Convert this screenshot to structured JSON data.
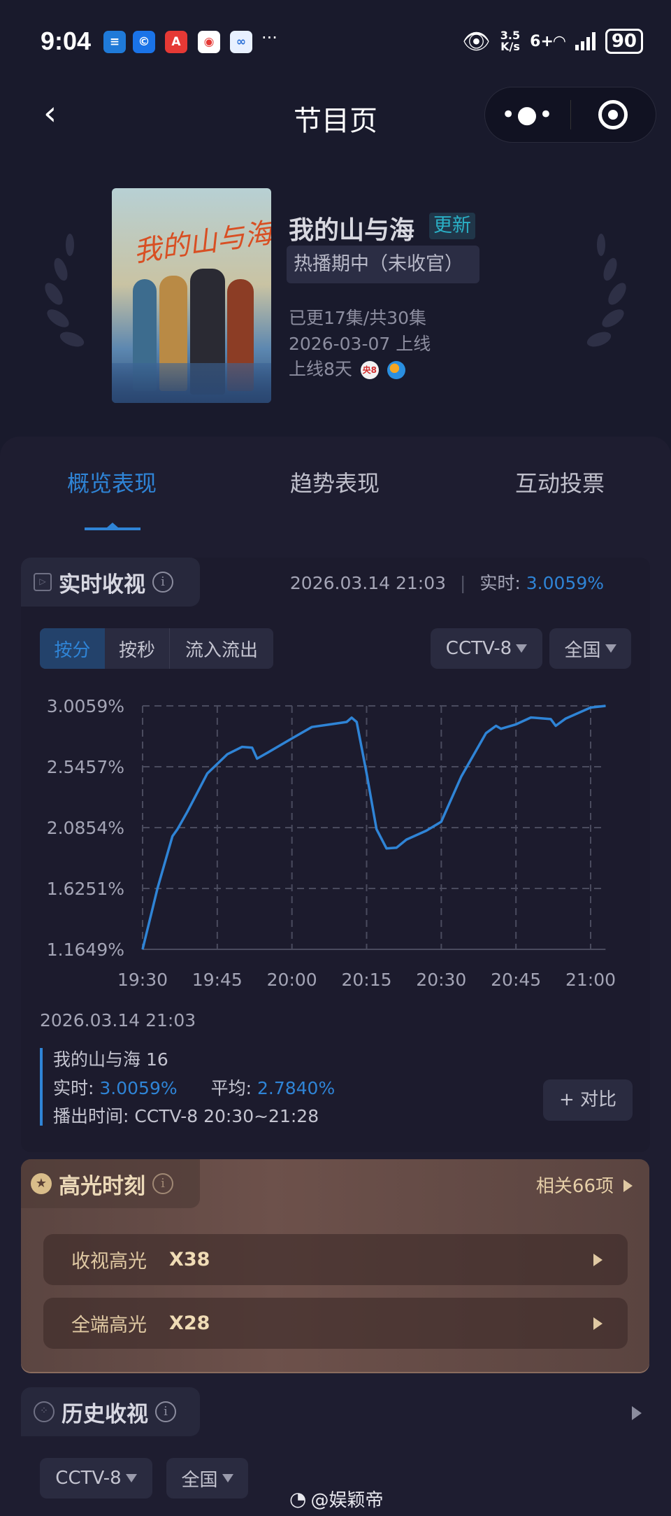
{
  "status_bar": {
    "time": "9:04",
    "net_speed_value": "3.5",
    "net_speed_unit": "K/s",
    "wifi_label": "6+",
    "battery": "90",
    "overflow": "···",
    "apps": [
      {
        "name": "app-1",
        "color": "#1f7ad8"
      },
      {
        "name": "app-2",
        "color": "#1a73e8"
      },
      {
        "name": "app-3",
        "color": "#e53935"
      },
      {
        "name": "weibo",
        "color": "#ffffff"
      },
      {
        "name": "app-5",
        "color": "#e8f0ff"
      }
    ]
  },
  "header": {
    "title": "节目页",
    "back_icon": "chevron-left-icon",
    "more_icon": "more-dots-icon",
    "close_icon": "record-circle-icon"
  },
  "show": {
    "poster_title": "我的山与海",
    "title": "我的山与海",
    "badge": "更新",
    "status_tag": "热播期中（未收官）",
    "episodes": "已更17集/共30集",
    "premiere": "2026-03-07 上线",
    "days_online": "上线8天",
    "channel_badge": "央8"
  },
  "tabs": [
    {
      "label": "概览表现",
      "active": true
    },
    {
      "label": "趋势表现",
      "active": false
    },
    {
      "label": "互动投票",
      "active": false
    }
  ],
  "realtime": {
    "title": "实时收视",
    "timestamp": "2026.03.14 21:03",
    "realtime_label": "实时:",
    "realtime_value": "3.0059%",
    "toggle": [
      "按分",
      "按秒",
      "流入流出"
    ],
    "channel": "CCTV-8",
    "region": "全国"
  },
  "chart_data": {
    "type": "line",
    "xlabel": "",
    "ylabel": "",
    "grid": true,
    "x_ticks": [
      "19:30",
      "19:45",
      "20:00",
      "20:15",
      "20:30",
      "20:45",
      "21:00"
    ],
    "y_ticks": [
      "3.0059%",
      "2.5457%",
      "2.0854%",
      "1.6251%",
      "1.1649%"
    ],
    "ylim": [
      1.1649,
      3.0059
    ],
    "xlim": [
      "19:30",
      "21:03"
    ],
    "line_color": "#2f84d6",
    "series": [
      {
        "x": [
          "19:30",
          "19:33",
          "19:36",
          "19:37",
          "19:39",
          "19:43",
          "19:47",
          "19:50",
          "19:52",
          "19:53",
          "19:55",
          "20:00",
          "20:04",
          "20:08",
          "20:11",
          "20:12",
          "20:13",
          "20:15",
          "20:17",
          "20:19",
          "20:21",
          "20:23",
          "20:27",
          "20:30",
          "20:34",
          "20:39",
          "20:41",
          "20:42",
          "20:45",
          "20:48",
          "20:52",
          "20:53",
          "20:55",
          "21:00",
          "21:03"
        ],
        "y": [
          1.165,
          1.628,
          2.02,
          2.073,
          2.206,
          2.495,
          2.64,
          2.696,
          2.69,
          2.607,
          2.65,
          2.76,
          2.846,
          2.868,
          2.884,
          2.917,
          2.884,
          2.495,
          2.073,
          1.928,
          1.933,
          1.995,
          2.062,
          2.13,
          2.47,
          2.8,
          2.855,
          2.833,
          2.866,
          2.918,
          2.906,
          2.855,
          2.91,
          2.993,
          3.006
        ]
      }
    ]
  },
  "legend": {
    "date": "2026.03.14 21:03",
    "episode": "我的山与海 16",
    "realtime_label": "实时:",
    "realtime_value": "3.0059%",
    "average_label": "平均:",
    "average_value": "2.7840%",
    "airtime": "播出时间:  CCTV-8 20:30~21:28",
    "compare_button": "+ 对比"
  },
  "highlights": {
    "title": "高光时刻",
    "related": "相关66项",
    "rows": [
      {
        "label": "收视高光",
        "value": "X38"
      },
      {
        "label": "全端高光",
        "value": "X28"
      }
    ]
  },
  "history": {
    "title": "历史收视",
    "channel": "CCTV-8",
    "region": "全国"
  },
  "watermark": "@娱颖帝"
}
